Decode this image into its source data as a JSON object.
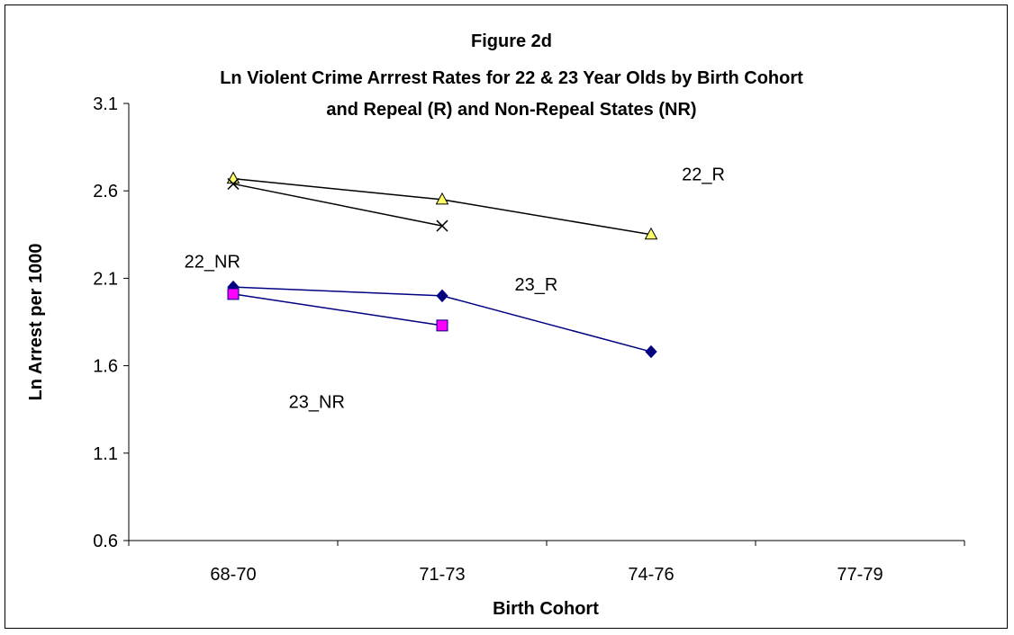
{
  "chart_data": {
    "type": "line",
    "title": "Figure 2d",
    "subtitle_lines": [
      "Ln Violent Crime Arrrest Rates for 22 & 23 Year Olds by Birth Cohort",
      "and Repeal (R) and Non-Repeal States (NR)"
    ],
    "xlabel": "Birth Cohort",
    "ylabel": "Ln Arrest per 1000",
    "categories": [
      "68-70",
      "71-73",
      "74-76",
      "77-79"
    ],
    "ylim": [
      0.6,
      3.1
    ],
    "yticks": [
      "0.6",
      "1.1",
      "1.6",
      "2.1",
      "2.6",
      "3.1"
    ],
    "yticks_values": [
      0.6,
      1.1,
      1.6,
      2.1,
      2.6,
      3.1
    ],
    "grid": false,
    "series": [
      {
        "values": [
          2.67,
          2.55,
          2.35,
          null
        ],
        "marker": "triangle",
        "color": "#000000",
        "marker_fill": "#ffff66"
      },
      {
        "values": [
          2.64,
          2.4,
          null,
          null
        ],
        "marker": "x",
        "color": "#000000",
        "marker_fill": "#000000"
      },
      {
        "values": [
          2.05,
          2.0,
          1.68,
          null
        ],
        "marker": "diamond",
        "color": "#000080",
        "marker_fill": "#000080"
      },
      {
        "values": [
          2.01,
          1.83,
          null,
          null
        ],
        "marker": "square",
        "color": "#000080",
        "marker_fill": "#ff00ff"
      }
    ],
    "annotations": [
      {
        "text": "22_R",
        "x": 2.25,
        "y": 2.66
      },
      {
        "text": "22_NR",
        "x": -0.1,
        "y": 2.16
      },
      {
        "text": "23_R",
        "x": 1.45,
        "y": 2.03
      },
      {
        "text": "23_NR",
        "x": 0.4,
        "y": 1.36
      }
    ]
  }
}
